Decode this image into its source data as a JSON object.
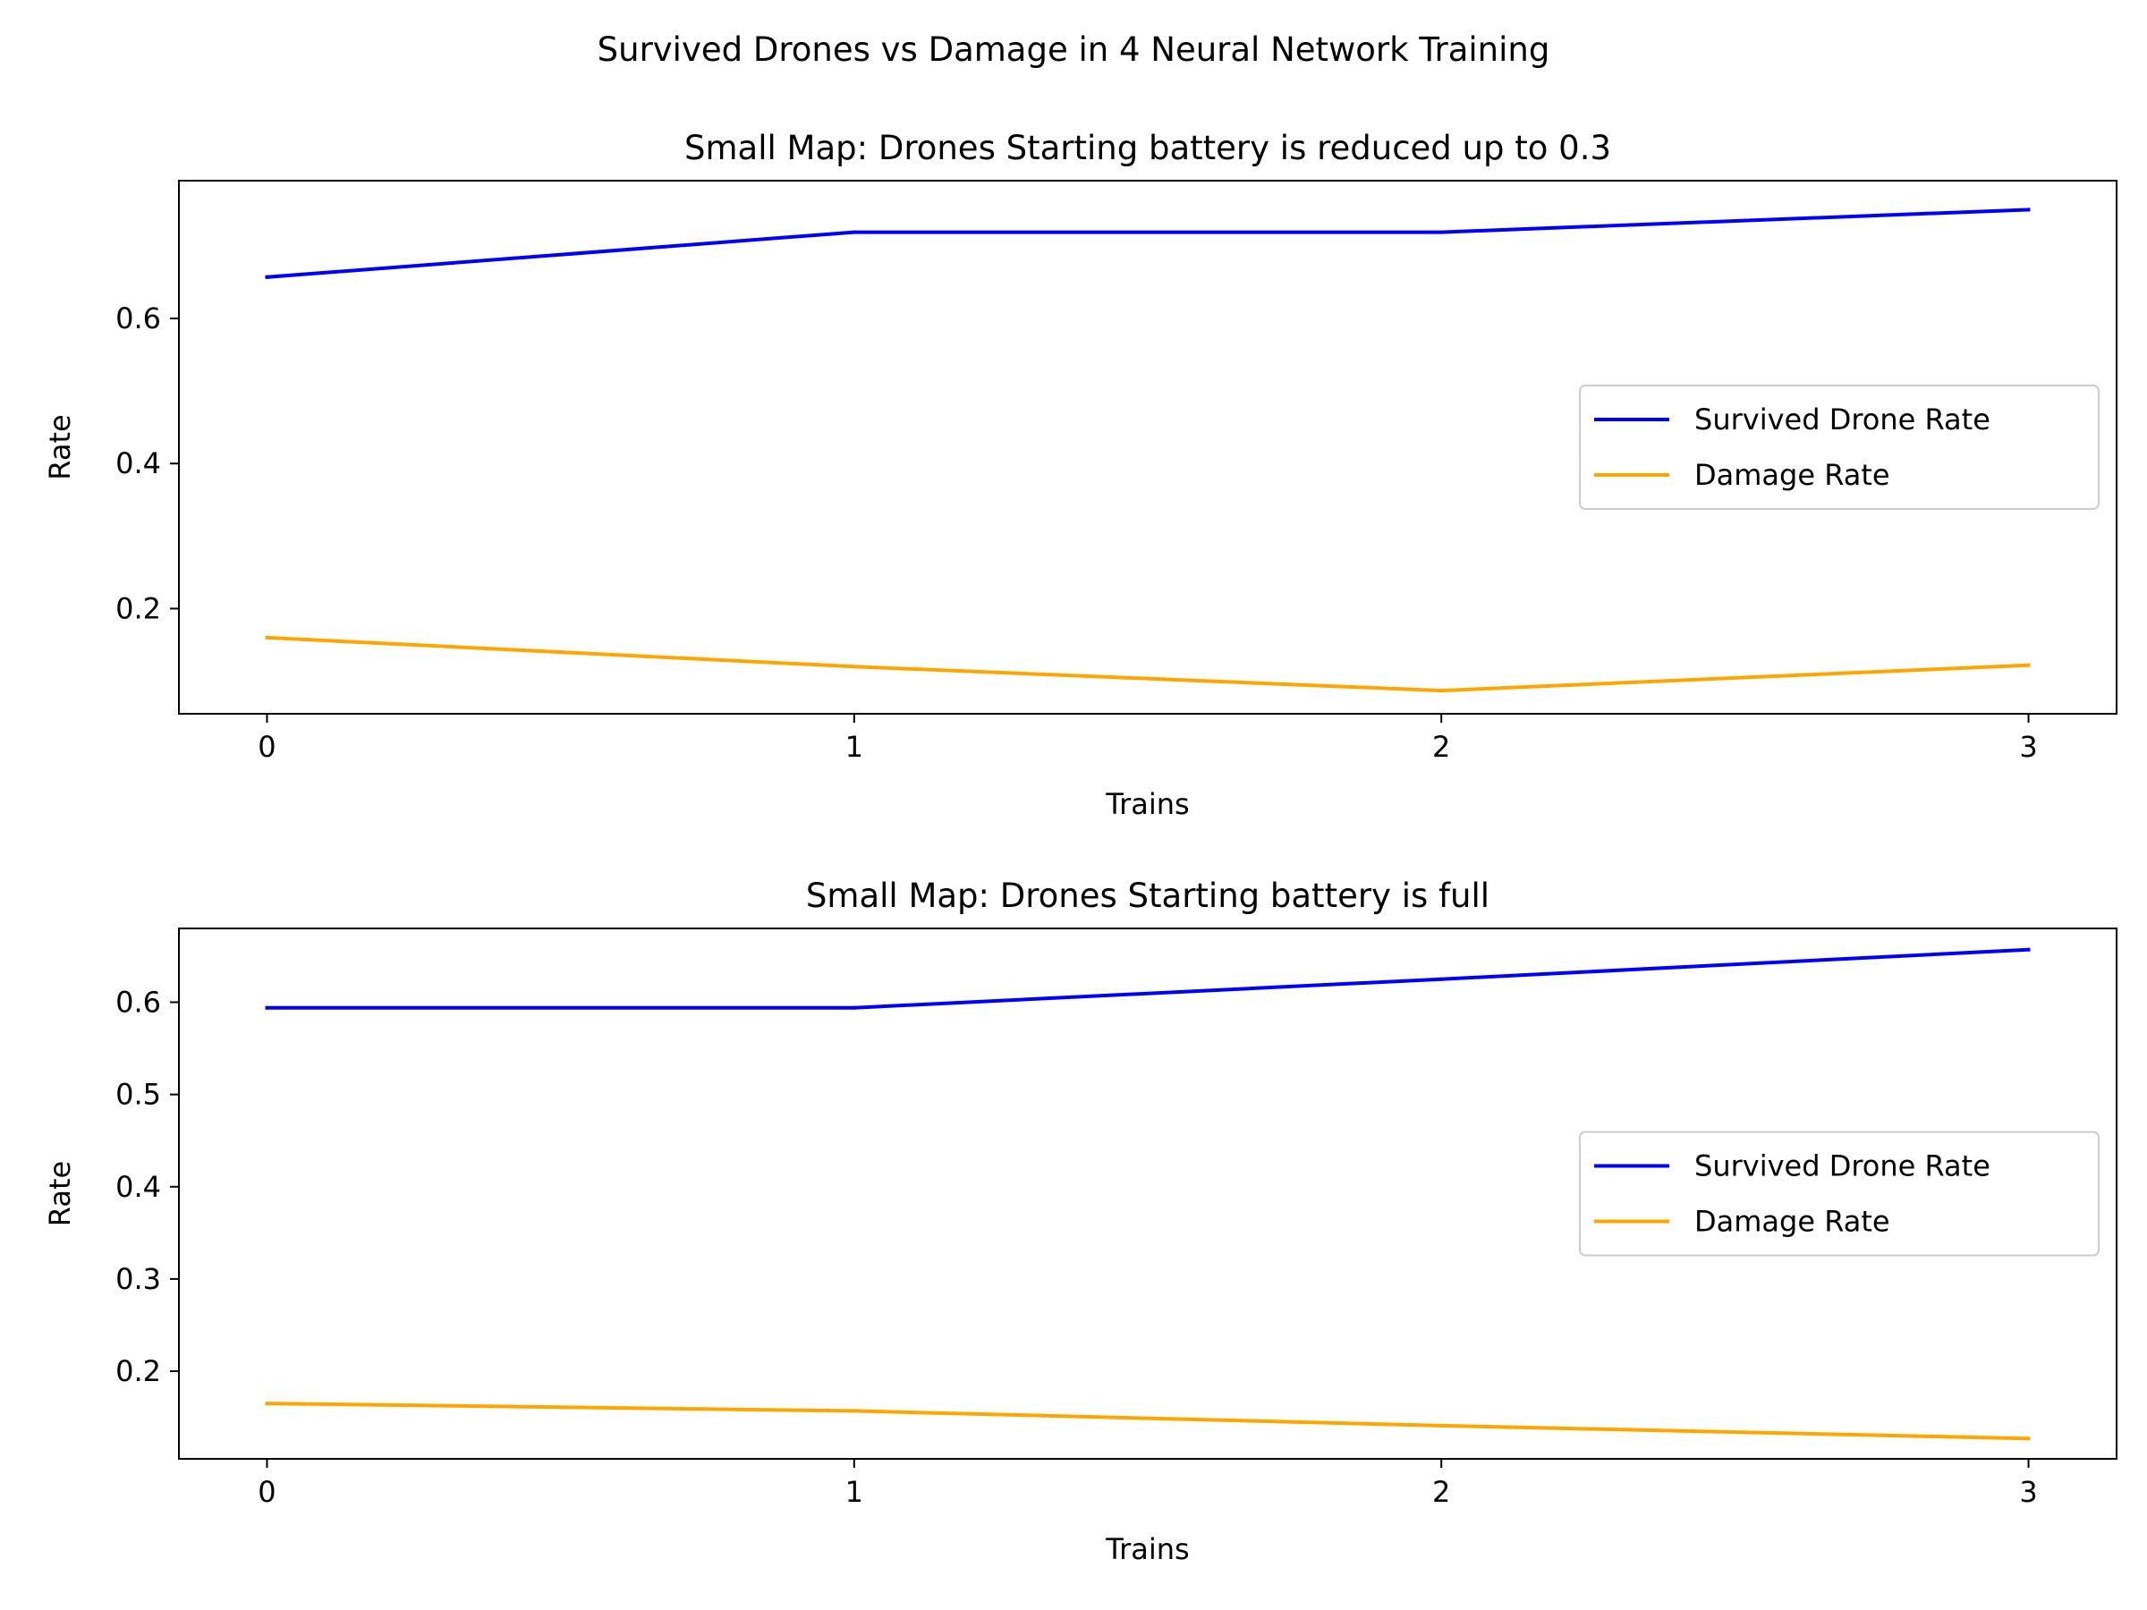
{
  "figure": {
    "suptitle": "Survived Drones vs Damage in 4 Neural Network Training"
  },
  "colors": {
    "survived": "#0000ff",
    "damage": "#ffa500"
  },
  "chart_data": [
    {
      "type": "line",
      "title": "Small Map: Drones Starting battery is reduced up to 0.3",
      "xlabel": "Trains",
      "ylabel": "Rate",
      "x": [
        0,
        1,
        2,
        3
      ],
      "xticks": [
        0,
        1,
        2,
        3
      ],
      "yticks": [
        0.2,
        0.4,
        0.6
      ],
      "xlim": [
        -0.15,
        3.15
      ],
      "ylim": [
        0.055,
        0.79
      ],
      "grid": false,
      "legend": "center right",
      "series": [
        {
          "name": "Survived Drone Rate",
          "color": "#0000ff",
          "values": [
            0.657,
            0.719,
            0.719,
            0.75
          ]
        },
        {
          "name": "Damage Rate",
          "color": "#ffa500",
          "values": [
            0.16,
            0.12,
            0.087,
            0.122
          ]
        }
      ]
    },
    {
      "type": "line",
      "title": "Small Map: Drones Starting battery is full",
      "xlabel": "Trains",
      "ylabel": "Rate",
      "x": [
        0,
        1,
        2,
        3
      ],
      "xticks": [
        0,
        1,
        2,
        3
      ],
      "yticks": [
        0.2,
        0.3,
        0.4,
        0.5,
        0.6
      ],
      "xlim": [
        -0.15,
        3.15
      ],
      "ylim": [
        0.105,
        0.68
      ],
      "grid": false,
      "legend": "center right",
      "series": [
        {
          "name": "Survived Drone Rate",
          "color": "#0000ff",
          "values": [
            0.594,
            0.594,
            0.625,
            0.657
          ]
        },
        {
          "name": "Damage Rate",
          "color": "#ffa500",
          "values": [
            0.165,
            0.157,
            0.141,
            0.127
          ]
        }
      ]
    }
  ]
}
